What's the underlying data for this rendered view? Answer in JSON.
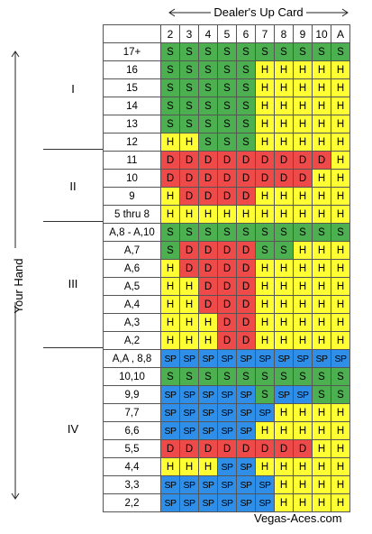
{
  "dealer_title": "Dealer's Up Card",
  "side_title": "Your Hand",
  "brand": "Vegas-Aces.com",
  "columns": [
    "2",
    "3",
    "4",
    "5",
    "6",
    "7",
    "8",
    "9",
    "10",
    "A"
  ],
  "sections": [
    "I",
    "II",
    "III",
    "IV"
  ],
  "legend_colors": {
    "S": "#4caf50",
    "H": "#ffff33",
    "D": "#ee4a4a",
    "SP": "#2f8fe8"
  },
  "rows": [
    {
      "hand": "17+",
      "cells": [
        "S",
        "S",
        "S",
        "S",
        "S",
        "S",
        "S",
        "S",
        "S",
        "S"
      ]
    },
    {
      "hand": "16",
      "cells": [
        "S",
        "S",
        "S",
        "S",
        "S",
        "H",
        "H",
        "H",
        "H",
        "H"
      ]
    },
    {
      "hand": "15",
      "cells": [
        "S",
        "S",
        "S",
        "S",
        "S",
        "H",
        "H",
        "H",
        "H",
        "H"
      ]
    },
    {
      "hand": "14",
      "cells": [
        "S",
        "S",
        "S",
        "S",
        "S",
        "H",
        "H",
        "H",
        "H",
        "H"
      ]
    },
    {
      "hand": "13",
      "cells": [
        "S",
        "S",
        "S",
        "S",
        "S",
        "H",
        "H",
        "H",
        "H",
        "H"
      ]
    },
    {
      "hand": "12",
      "cells": [
        "H",
        "H",
        "S",
        "S",
        "S",
        "H",
        "H",
        "H",
        "H",
        "H"
      ]
    },
    {
      "hand": "11",
      "cells": [
        "D",
        "D",
        "D",
        "D",
        "D",
        "D",
        "D",
        "D",
        "D",
        "H"
      ]
    },
    {
      "hand": "10",
      "cells": [
        "D",
        "D",
        "D",
        "D",
        "D",
        "D",
        "D",
        "D",
        "H",
        "H"
      ]
    },
    {
      "hand": "9",
      "cells": [
        "H",
        "D",
        "D",
        "D",
        "D",
        "H",
        "H",
        "H",
        "H",
        "H"
      ]
    },
    {
      "hand": "5 thru 8",
      "cells": [
        "H",
        "H",
        "H",
        "H",
        "H",
        "H",
        "H",
        "H",
        "H",
        "H"
      ]
    },
    {
      "hand": "A,8 - A,10",
      "cells": [
        "S",
        "S",
        "S",
        "S",
        "S",
        "S",
        "S",
        "S",
        "S",
        "S"
      ]
    },
    {
      "hand": "A,7",
      "cells": [
        "S",
        "D",
        "D",
        "D",
        "D",
        "S",
        "S",
        "H",
        "H",
        "H"
      ]
    },
    {
      "hand": "A,6",
      "cells": [
        "H",
        "D",
        "D",
        "D",
        "D",
        "H",
        "H",
        "H",
        "H",
        "H"
      ]
    },
    {
      "hand": "A,5",
      "cells": [
        "H",
        "H",
        "D",
        "D",
        "D",
        "H",
        "H",
        "H",
        "H",
        "H"
      ]
    },
    {
      "hand": "A,4",
      "cells": [
        "H",
        "H",
        "D",
        "D",
        "D",
        "H",
        "H",
        "H",
        "H",
        "H"
      ]
    },
    {
      "hand": "A,3",
      "cells": [
        "H",
        "H",
        "H",
        "D",
        "D",
        "H",
        "H",
        "H",
        "H",
        "H"
      ]
    },
    {
      "hand": "A,2",
      "cells": [
        "H",
        "H",
        "H",
        "D",
        "D",
        "H",
        "H",
        "H",
        "H",
        "H"
      ]
    },
    {
      "hand": "A,A , 8,8",
      "cells": [
        "SP",
        "SP",
        "SP",
        "SP",
        "SP",
        "SP",
        "SP",
        "SP",
        "SP",
        "SP"
      ]
    },
    {
      "hand": "10,10",
      "cells": [
        "S",
        "S",
        "S",
        "S",
        "S",
        "S",
        "S",
        "S",
        "S",
        "S"
      ]
    },
    {
      "hand": "9,9",
      "cells": [
        "SP",
        "SP",
        "SP",
        "SP",
        "SP",
        "S",
        "SP",
        "SP",
        "S",
        "S"
      ]
    },
    {
      "hand": "7,7",
      "cells": [
        "SP",
        "SP",
        "SP",
        "SP",
        "SP",
        "SP",
        "H",
        "H",
        "H",
        "H"
      ]
    },
    {
      "hand": "6,6",
      "cells": [
        "SP",
        "SP",
        "SP",
        "SP",
        "SP",
        "H",
        "H",
        "H",
        "H",
        "H"
      ]
    },
    {
      "hand": "5,5",
      "cells": [
        "D",
        "D",
        "D",
        "D",
        "D",
        "D",
        "D",
        "D",
        "H",
        "H"
      ]
    },
    {
      "hand": "4,4",
      "cells": [
        "H",
        "H",
        "H",
        "SP",
        "SP",
        "H",
        "H",
        "H",
        "H",
        "H"
      ]
    },
    {
      "hand": "3,3",
      "cells": [
        "SP",
        "SP",
        "SP",
        "SP",
        "SP",
        "SP",
        "H",
        "H",
        "H",
        "H"
      ]
    },
    {
      "hand": "2,2",
      "cells": [
        "SP",
        "SP",
        "SP",
        "SP",
        "SP",
        "SP",
        "H",
        "H",
        "H",
        "H"
      ]
    }
  ]
}
